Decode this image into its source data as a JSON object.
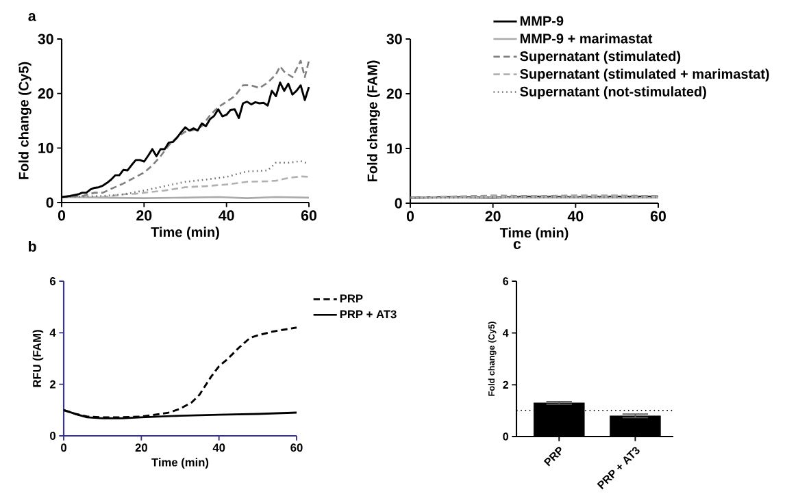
{
  "chart_data": [
    {
      "type": "line",
      "xlabel": "Time (min)",
      "ylabel": "Fold change (Cy5)",
      "xlim": [
        0,
        60
      ],
      "ylim": [
        0,
        30
      ],
      "xticks": [
        0,
        20,
        40,
        60
      ],
      "yticks": [
        0,
        10,
        20,
        30
      ],
      "annotations": [
        "a"
      ],
      "series": [
        {
          "color": "#aaaaaa",
          "line_style": "solid",
          "x": [
            0,
            10,
            20,
            30,
            38,
            45,
            52,
            60
          ],
          "values": [
            1.0,
            0.9,
            0.8,
            0.9,
            1.0,
            0.8,
            1.0,
            0.9
          ]
        },
        {
          "color": "#b0b0b0",
          "line_style": "dashed",
          "x": [
            0,
            10,
            15,
            18,
            20,
            25,
            30,
            35,
            40,
            45,
            50,
            52,
            55,
            58,
            60
          ],
          "values": [
            1.0,
            1.0,
            1.5,
            1.6,
            1.8,
            2.2,
            2.8,
            3.0,
            3.3,
            3.8,
            3.9,
            4.0,
            4.5,
            4.8,
            4.7
          ]
        },
        {
          "color": "#707070",
          "line_style": "dotted",
          "x": [
            0,
            10,
            15,
            20,
            25,
            30,
            35,
            40,
            45,
            48,
            50,
            52,
            55,
            58,
            60
          ],
          "values": [
            1.0,
            1.2,
            1.5,
            2.2,
            3.0,
            3.8,
            4.2,
            4.7,
            5.7,
            5.8,
            5.9,
            7.3,
            7.3,
            7.6,
            7.1
          ]
        },
        {
          "color": "#808080",
          "line_style": "dashed",
          "x": [
            0,
            5,
            8,
            10,
            12,
            15,
            18,
            20,
            22,
            24,
            26,
            28,
            30,
            32,
            34,
            36,
            38,
            40,
            42,
            44,
            46,
            48,
            50,
            52,
            53,
            54,
            56,
            58,
            59,
            60
          ],
          "values": [
            1.0,
            1.2,
            1.8,
            1.8,
            2.5,
            3.5,
            4.7,
            5.5,
            6.8,
            8.5,
            10.5,
            12.0,
            13.0,
            13.3,
            14.0,
            16.0,
            17.5,
            18.5,
            19.5,
            21.5,
            21.5,
            21.0,
            22.0,
            23.5,
            25.0,
            24.0,
            23.0,
            26.0,
            23.0,
            26.0
          ]
        },
        {
          "color": "#000000",
          "line_style": "solid",
          "x": [
            0,
            2,
            4,
            5,
            6,
            7,
            8,
            9,
            10,
            11,
            12,
            13,
            14,
            15,
            16,
            17,
            18,
            19,
            20,
            21,
            22,
            23,
            24,
            25,
            26,
            27,
            28,
            29,
            30,
            31,
            32,
            33,
            34,
            35,
            36,
            37,
            38,
            39,
            40,
            41,
            42,
            43,
            44,
            45,
            46,
            47,
            48,
            49,
            50,
            51,
            52,
            53,
            54,
            55,
            56,
            57,
            58,
            59,
            60
          ],
          "values": [
            1.0,
            1.2,
            1.5,
            1.8,
            1.8,
            2.4,
            2.7,
            2.8,
            3.1,
            3.6,
            4.2,
            5.0,
            5.0,
            6.0,
            5.9,
            6.9,
            7.8,
            7.8,
            7.5,
            8.6,
            9.8,
            8.5,
            9.8,
            9.8,
            11.0,
            11.1,
            11.9,
            12.9,
            13.8,
            13.2,
            13.6,
            13.2,
            14.5,
            14.0,
            15.3,
            15.9,
            17.1,
            15.8,
            16.1,
            17.0,
            17.1,
            15.5,
            18.2,
            18.5,
            18.0,
            18.4,
            18.2,
            18.3,
            17.8,
            20.5,
            19.5,
            22.0,
            20.5,
            21.8,
            19.8,
            20.5,
            21.5,
            18.8,
            21.2
          ]
        }
      ]
    },
    {
      "type": "line",
      "xlabel": "Time (min)",
      "ylabel": "Fold change (FAM)",
      "xlim": [
        0,
        60
      ],
      "ylim": [
        0,
        30
      ],
      "xticks": [
        0,
        20,
        40,
        60
      ],
      "yticks": [
        0,
        10,
        20,
        30
      ],
      "legend": "top right",
      "series": [
        {
          "name": "MMP-9",
          "color": "#000000",
          "line_style": "solid",
          "x": [
            0,
            10,
            20,
            30,
            40,
            50,
            60
          ],
          "values": [
            1.0,
            1.1,
            1.0,
            1.2,
            1.1,
            1.2,
            1.2
          ]
        },
        {
          "name": "MMP-9 + marimastat",
          "color": "#aaaaaa",
          "line_style": "solid",
          "x": [
            0,
            10,
            20,
            30,
            40,
            50,
            60
          ],
          "values": [
            1.0,
            1.0,
            1.0,
            1.0,
            1.0,
            1.0,
            1.0
          ]
        },
        {
          "name": "Supernatant (stimulated)",
          "color": "#808080",
          "line_style": "dashed",
          "x": [
            0,
            10,
            20,
            30,
            40,
            50,
            60
          ],
          "values": [
            1.0,
            1.2,
            1.4,
            1.3,
            1.4,
            1.4,
            1.3
          ]
        },
        {
          "name": "Supernatant (stimulated + marimastat)",
          "color": "#b0b0b0",
          "line_style": "dashed",
          "x": [
            0,
            10,
            20,
            30,
            40,
            50,
            60
          ],
          "values": [
            1.0,
            1.1,
            1.3,
            1.2,
            1.3,
            1.3,
            1.2
          ]
        },
        {
          "name": "Supernatant (not-stimulated)",
          "color": "#707070",
          "line_style": "dotted",
          "x": [
            0,
            10,
            20,
            30,
            40,
            50,
            60
          ],
          "values": [
            1.0,
            1.0,
            1.1,
            1.1,
            1.1,
            1.1,
            1.1
          ]
        }
      ]
    },
    {
      "type": "line",
      "xlabel": "Time (min)",
      "ylabel": "RFU  (FAM)",
      "xlim": [
        0,
        60
      ],
      "ylim": [
        0,
        6
      ],
      "xticks": [
        0,
        20,
        40,
        60
      ],
      "yticks": [
        0,
        2,
        4,
        6
      ],
      "legend": "right",
      "annotations": [
        "b"
      ],
      "series": [
        {
          "name": "PRP",
          "color": "#000000",
          "line_style": "dashed",
          "x": [
            0,
            3,
            6,
            10,
            15,
            20,
            25,
            27,
            30,
            33,
            35,
            38,
            40,
            42,
            45,
            48,
            50,
            54,
            58,
            60
          ],
          "values": [
            1.0,
            0.85,
            0.75,
            0.72,
            0.72,
            0.75,
            0.85,
            0.9,
            1.05,
            1.3,
            1.6,
            2.3,
            2.7,
            2.95,
            3.4,
            3.8,
            3.9,
            4.05,
            4.15,
            4.2
          ]
        },
        {
          "name": "PRP + AT3",
          "color": "#000000",
          "line_style": "solid",
          "x": [
            0,
            3,
            6,
            10,
            15,
            20,
            30,
            40,
            50,
            60
          ],
          "values": [
            1.0,
            0.85,
            0.72,
            0.68,
            0.68,
            0.72,
            0.78,
            0.82,
            0.85,
            0.9
          ]
        }
      ]
    },
    {
      "type": "bar",
      "ylabel": "Fold change (Cy5)",
      "categories": [
        "PRP",
        "PRP + AT3"
      ],
      "values": [
        1.3,
        0.8
      ],
      "errors": [
        0.05,
        0.07
      ],
      "color": "#000000",
      "ylim": [
        0,
        6
      ],
      "yticks": [
        0,
        2,
        4,
        6
      ],
      "annotations": [
        "c"
      ],
      "ref_lines": [
        {
          "axis": "y",
          "value": 1,
          "color": "#000000",
          "line_style": "dotted"
        }
      ]
    }
  ]
}
